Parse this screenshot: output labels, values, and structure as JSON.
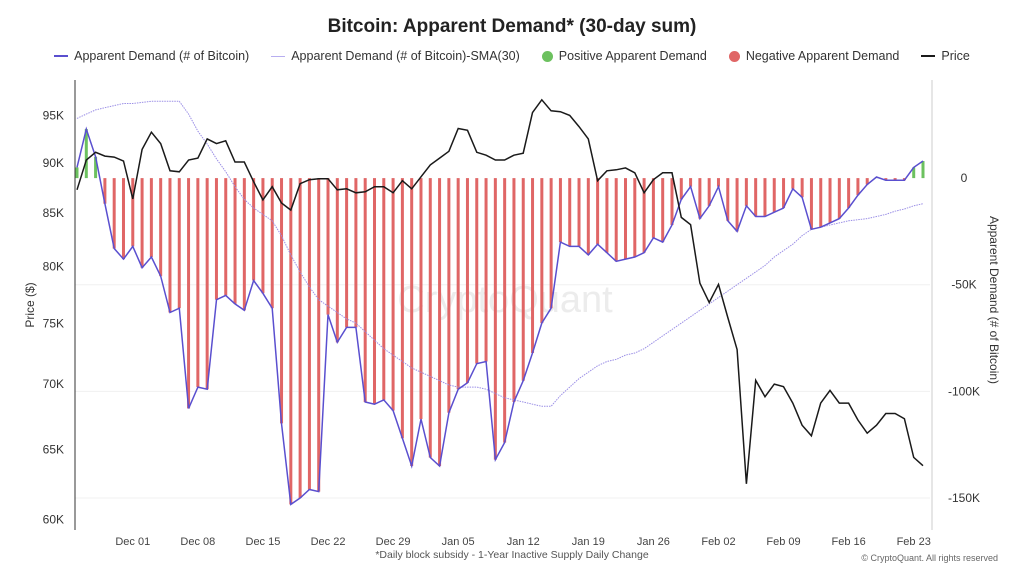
{
  "chart_data": {
    "type": "bar+line",
    "title": "Bitcoin: Apparent Demand* (30-day sum)",
    "footnote": "*Daily block subsidy - 1-Year Inactive Supply Daily Change",
    "copyright": "© CryptoQuant. All rights reserved",
    "watermark": "CryptoQuant",
    "ylabel_left": "Price ($)",
    "ylabel_right": "Apparent Demand (# of Bitcoin)",
    "y_left_scale": "log",
    "y_left_range": [
      59300,
      98900
    ],
    "y_left_ticks": [
      {
        "v": 60000,
        "l": "60K"
      },
      {
        "v": 65000,
        "l": "65K"
      },
      {
        "v": 70000,
        "l": "70K"
      },
      {
        "v": 75000,
        "l": "75K"
      },
      {
        "v": 80000,
        "l": "80K"
      },
      {
        "v": 85000,
        "l": "85K"
      },
      {
        "v": 90000,
        "l": "90K"
      },
      {
        "v": 95000,
        "l": "95K"
      }
    ],
    "y_right_range": [
      -165000,
      46000
    ],
    "y_right_ticks": [
      {
        "v": 0,
        "l": "0"
      },
      {
        "v": -50000,
        "l": "-50K"
      },
      {
        "v": -100000,
        "l": "-100K"
      },
      {
        "v": -150000,
        "l": "-150K"
      }
    ],
    "x_ticks": [
      "Dec 01",
      "Dec 08",
      "Dec 15",
      "Dec 22",
      "Dec 29",
      "Jan 05",
      "Jan 12",
      "Jan 19",
      "Jan 26",
      "Feb 02",
      "Feb 09",
      "Feb 16",
      "Feb 23"
    ],
    "grid": "horizontal, right-axis ticks",
    "legend_position": "top",
    "colors": {
      "demand": "#5a4fcf",
      "sma": "#9b8fe6",
      "positive": "#6cc15f",
      "negative": "#e06666",
      "price": "#1a1a1a"
    },
    "legend": [
      {
        "label": "Apparent Demand (# of Bitcoin)",
        "kind": "line",
        "color": "#5a4fcf"
      },
      {
        "label": "Apparent Demand (# of Bitcoin)-SMA(30)",
        "kind": "line",
        "color": "#b7aef0"
      },
      {
        "label": "Positive Apparent Demand",
        "kind": "dot",
        "color": "#6cc15f"
      },
      {
        "label": "Negative Apparent Demand",
        "kind": "dot",
        "color": "#e06666"
      },
      {
        "label": "Price",
        "kind": "line",
        "color": "#1a1a1a"
      }
    ],
    "dates": [
      "Nov 25",
      "Nov 26",
      "Nov 27",
      "Nov 28",
      "Nov 29",
      "Nov 30",
      "Dec 01",
      "Dec 02",
      "Dec 03",
      "Dec 04",
      "Dec 05",
      "Dec 06",
      "Dec 07",
      "Dec 08",
      "Dec 09",
      "Dec 10",
      "Dec 11",
      "Dec 12",
      "Dec 13",
      "Dec 14",
      "Dec 15",
      "Dec 16",
      "Dec 17",
      "Dec 18",
      "Dec 19",
      "Dec 20",
      "Dec 21",
      "Dec 22",
      "Dec 23",
      "Dec 24",
      "Dec 25",
      "Dec 26",
      "Dec 27",
      "Dec 28",
      "Dec 29",
      "Dec 30",
      "Dec 31",
      "Jan 01",
      "Jan 02",
      "Jan 03",
      "Jan 04",
      "Jan 05",
      "Jan 06",
      "Jan 07",
      "Jan 08",
      "Jan 09",
      "Jan 10",
      "Jan 11",
      "Jan 12",
      "Jan 13",
      "Jan 14",
      "Jan 15",
      "Jan 16",
      "Jan 17",
      "Jan 18",
      "Jan 19",
      "Jan 20",
      "Jan 21",
      "Jan 22",
      "Jan 23",
      "Jan 24",
      "Jan 25",
      "Jan 26",
      "Jan 27",
      "Jan 28",
      "Jan 29",
      "Jan 30",
      "Jan 31",
      "Feb 01",
      "Feb 02",
      "Feb 03",
      "Feb 04",
      "Feb 05",
      "Feb 06",
      "Feb 07",
      "Feb 08",
      "Feb 09",
      "Feb 10",
      "Feb 11",
      "Feb 12",
      "Feb 13",
      "Feb 14",
      "Feb 15",
      "Feb 16",
      "Feb 17",
      "Feb 18",
      "Feb 19",
      "Feb 20",
      "Feb 21",
      "Feb 22",
      "Feb 23",
      "Feb 24"
    ],
    "series": [
      {
        "name": "Apparent Demand (# of Bitcoin)",
        "axis": "right",
        "values": [
          5000,
          23000,
          10000,
          -12000,
          -33000,
          -38000,
          -32000,
          -42000,
          -37000,
          -46000,
          -63000,
          -61000,
          -108000,
          -98000,
          -99000,
          -57000,
          -55000,
          -59000,
          -62000,
          -48000,
          -54000,
          -61000,
          -115000,
          -153000,
          -150000,
          -146000,
          -147000,
          -64000,
          -77000,
          -70000,
          -70000,
          -105000,
          -106000,
          -104000,
          -109000,
          -122000,
          -135000,
          -113000,
          -131000,
          -135000,
          -110000,
          -99000,
          -96000,
          -87000,
          -86000,
          -132000,
          -124000,
          -105000,
          -95000,
          -82000,
          -68000,
          -61000,
          -30000,
          -32000,
          -32000,
          -36000,
          -31000,
          -35000,
          -39000,
          -38000,
          -37000,
          -35000,
          -28000,
          -30000,
          -22000,
          -10000,
          -4000,
          -19000,
          -13000,
          -4000,
          -20000,
          -25000,
          -13000,
          -18000,
          -18000,
          -16000,
          -14000,
          -5000,
          -9000,
          -24000,
          -23000,
          -21000,
          -19000,
          -14000,
          -8000,
          -3000,
          500,
          -1000,
          -1000,
          -1000,
          5000,
          8000
        ]
      },
      {
        "name": "Apparent Demand (# of Bitcoin)-SMA(30)",
        "axis": "right",
        "values": [
          28000,
          30000,
          32000,
          33000,
          34000,
          35000,
          35000,
          35500,
          36000,
          36000,
          36000,
          36000,
          30000,
          22000,
          16000,
          9000,
          3000,
          -4000,
          -10000,
          -14000,
          -17000,
          -20000,
          -27000,
          -36000,
          -44000,
          -51000,
          -57000,
          -60000,
          -63000,
          -66000,
          -68000,
          -72000,
          -76000,
          -80000,
          -83000,
          -86000,
          -89000,
          -91000,
          -93000,
          -95000,
          -97000,
          -98000,
          -98000,
          -98000,
          -99000,
          -101000,
          -103000,
          -104000,
          -105000,
          -106000,
          -107000,
          -107000,
          -102000,
          -98000,
          -94000,
          -91000,
          -88000,
          -86000,
          -85000,
          -83000,
          -82000,
          -80000,
          -77000,
          -74000,
          -71000,
          -68000,
          -65000,
          -62000,
          -59000,
          -56000,
          -53000,
          -50000,
          -47000,
          -44000,
          -41000,
          -37000,
          -34000,
          -31000,
          -27000,
          -24000,
          -23000,
          -22000,
          -21000,
          -20000,
          -19500,
          -19000,
          -18000,
          -17000,
          -15500,
          -14500,
          -13000,
          -12000
        ]
      },
      {
        "name": "Price",
        "axis": "left",
        "values": [
          87300,
          90300,
          91100,
          90700,
          90600,
          90200,
          86400,
          91400,
          93200,
          92000,
          89200,
          89100,
          90300,
          90500,
          92500,
          92000,
          92300,
          90100,
          90100,
          88100,
          86300,
          87600,
          86000,
          85300,
          87900,
          88300,
          88400,
          88400,
          87300,
          87400,
          87000,
          87100,
          87600,
          87600,
          87000,
          88200,
          87400,
          88600,
          89800,
          90500,
          91200,
          93600,
          93400,
          91100,
          90800,
          90300,
          90300,
          90800,
          91000,
          95300,
          96700,
          95500,
          95400,
          95000,
          93800,
          92500,
          88200,
          89200,
          89300,
          89500,
          89000,
          87000,
          88300,
          89000,
          89000,
          84600,
          83900,
          78500,
          76800,
          78400,
          75500,
          72800,
          62500,
          70300,
          69000,
          70000,
          69800,
          68500,
          66800,
          66000,
          68500,
          69500,
          68500,
          68500,
          67200,
          66200,
          66800,
          67700,
          67700,
          67300,
          64400,
          63800
        ]
      }
    ]
  }
}
